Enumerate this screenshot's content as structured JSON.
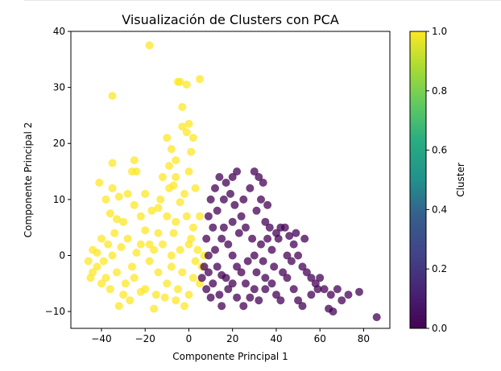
{
  "chart_data": {
    "type": "scatter",
    "title": "Visualización de Clusters con PCA",
    "xlabel": "Componente Principal 1",
    "ylabel": "Componente Principal 2",
    "xlim": [
      -54,
      92
    ],
    "ylim": [
      -13,
      40
    ],
    "xticks": [
      "−40",
      "−20",
      "0",
      "20",
      "40",
      "60",
      "80"
    ],
    "xtick_values": [
      -40,
      -20,
      0,
      20,
      40,
      60,
      80
    ],
    "yticks": [
      "−10",
      "0",
      "10",
      "20",
      "30",
      "40"
    ],
    "ytick_values": [
      -10,
      0,
      10,
      20,
      30,
      40
    ],
    "colorbar": {
      "label": "Cluster",
      "range": [
        0.0,
        1.0
      ],
      "ticks": [
        "0.0",
        "0.2",
        "0.4",
        "0.6",
        "0.8",
        "1.0"
      ],
      "tick_values": [
        0.0,
        0.2,
        0.4,
        0.6,
        0.8,
        1.0
      ],
      "colormap": "viridis"
    },
    "colors": {
      "cluster_0": "#440154",
      "cluster_1": "#fde725"
    },
    "series": [
      {
        "cluster": 1,
        "points": [
          [
            -18,
            37.5
          ],
          [
            -35,
            28.5
          ],
          [
            -5,
            31
          ],
          [
            -4,
            31
          ],
          [
            -1,
            30.5
          ],
          [
            5,
            31.5
          ],
          [
            -3,
            26.5
          ],
          [
            -1,
            22
          ],
          [
            -3,
            23
          ],
          [
            0,
            23.5
          ],
          [
            2,
            21
          ],
          [
            1,
            18.5
          ],
          [
            -35,
            16.5
          ],
          [
            -25,
            17
          ],
          [
            -24,
            15
          ],
          [
            -26,
            15
          ],
          [
            -41,
            13
          ],
          [
            -35,
            12
          ],
          [
            -38,
            10
          ],
          [
            -32,
            10.5
          ],
          [
            -28,
            11
          ],
          [
            -20,
            11
          ],
          [
            -25,
            9
          ],
          [
            -17,
            8
          ],
          [
            -36,
            7.5
          ],
          [
            -33,
            6.5
          ],
          [
            -30,
            6
          ],
          [
            -22,
            7
          ],
          [
            -10,
            21
          ],
          [
            -8,
            19
          ],
          [
            -6,
            17
          ],
          [
            -12,
            14
          ],
          [
            -9,
            12
          ],
          [
            -6,
            14
          ],
          [
            -4,
            9.5
          ],
          [
            0,
            15
          ],
          [
            -2,
            11
          ],
          [
            3,
            12
          ],
          [
            5,
            7
          ],
          [
            2,
            5
          ],
          [
            -14,
            4
          ],
          [
            -18,
            2
          ],
          [
            -28,
            3
          ],
          [
            -34,
            4
          ],
          [
            -40,
            3
          ],
          [
            -44,
            1
          ],
          [
            -46,
            -1
          ],
          [
            -42,
            -2
          ],
          [
            -38,
            -4
          ],
          [
            -33,
            -3
          ],
          [
            -29,
            -5
          ],
          [
            -25,
            -4
          ],
          [
            -20,
            -6
          ],
          [
            -15,
            -7
          ],
          [
            -10,
            -5
          ],
          [
            -5,
            -6
          ],
          [
            0,
            -7
          ],
          [
            -2,
            -9
          ],
          [
            -16,
            -9.5
          ],
          [
            -22,
            -6.5
          ],
          [
            -30,
            -7
          ],
          [
            -36,
            -6
          ],
          [
            -40,
            -5
          ],
          [
            -44,
            -3
          ],
          [
            -12,
            2
          ],
          [
            -8,
            0
          ],
          [
            -4,
            1
          ],
          [
            0,
            2
          ],
          [
            4,
            1
          ],
          [
            6,
            -2
          ],
          [
            -6,
            6
          ],
          [
            -10,
            7
          ],
          [
            1,
            3
          ],
          [
            -31,
            1.5
          ],
          [
            -24,
            0.5
          ],
          [
            -18,
            -1
          ],
          [
            -14,
            -3
          ],
          [
            -8,
            -2
          ],
          [
            -3,
            -3
          ],
          [
            2,
            -4
          ],
          [
            -35,
            0
          ],
          [
            -39,
            -1
          ],
          [
            -26,
            -2
          ],
          [
            -20,
            4.5
          ],
          [
            -14,
            8.5
          ],
          [
            -7,
            4
          ],
          [
            -1,
            7
          ],
          [
            3,
            -1
          ],
          [
            -45,
            -4
          ],
          [
            -42,
            0.5
          ],
          [
            -37,
            2
          ],
          [
            -27,
            -8
          ],
          [
            -32,
            -9
          ],
          [
            -11,
            -7.5
          ],
          [
            -6,
            -8
          ],
          [
            5,
            -5
          ],
          [
            7,
            0
          ],
          [
            -16,
            1
          ],
          [
            -22,
            2
          ],
          [
            -13,
            10
          ],
          [
            -9,
            16
          ],
          [
            -7,
            12.5
          ]
        ]
      },
      {
        "cluster": 0,
        "points": [
          [
            86,
            -11
          ],
          [
            78,
            -6.5
          ],
          [
            73,
            -7
          ],
          [
            70,
            -8
          ],
          [
            66,
            -10
          ],
          [
            64,
            -9.5
          ],
          [
            62,
            -6
          ],
          [
            59,
            -6
          ],
          [
            65,
            -7
          ],
          [
            68,
            -6
          ],
          [
            56,
            -7
          ],
          [
            52,
            -9
          ],
          [
            50,
            -8
          ],
          [
            48,
            -6
          ],
          [
            45,
            -4
          ],
          [
            42,
            -8
          ],
          [
            40,
            -7
          ],
          [
            38,
            -5
          ],
          [
            35,
            -6
          ],
          [
            32,
            -8
          ],
          [
            30,
            -6
          ],
          [
            28,
            -7.5
          ],
          [
            25,
            -9
          ],
          [
            22,
            -7.5
          ],
          [
            18,
            -6
          ],
          [
            14,
            -7
          ],
          [
            10,
            -7.5
          ],
          [
            8,
            -6
          ],
          [
            6,
            -4
          ],
          [
            7,
            -2
          ],
          [
            9,
            0
          ],
          [
            12,
            1
          ],
          [
            15,
            3
          ],
          [
            18,
            2
          ],
          [
            20,
            0
          ],
          [
            22,
            -2
          ],
          [
            24,
            -3
          ],
          [
            27,
            -1
          ],
          [
            30,
            0
          ],
          [
            33,
            2
          ],
          [
            36,
            3
          ],
          [
            38,
            1
          ],
          [
            40,
            4
          ],
          [
            42,
            5
          ],
          [
            44,
            5
          ],
          [
            46,
            3.5
          ],
          [
            48,
            2
          ],
          [
            50,
            0
          ],
          [
            52,
            -2
          ],
          [
            54,
            -3
          ],
          [
            56,
            -4
          ],
          [
            58,
            -5
          ],
          [
            60,
            -4
          ],
          [
            47,
            -1
          ],
          [
            43,
            -3
          ],
          [
            39,
            -2
          ],
          [
            35,
            -4
          ],
          [
            31,
            -3
          ],
          [
            29,
            3
          ],
          [
            26,
            5
          ],
          [
            24,
            7
          ],
          [
            21,
            9
          ],
          [
            19,
            11
          ],
          [
            17,
            13
          ],
          [
            14,
            14
          ],
          [
            12,
            12
          ],
          [
            10,
            10
          ],
          [
            9,
            7
          ],
          [
            11,
            5
          ],
          [
            13,
            8
          ],
          [
            16,
            10
          ],
          [
            20,
            6
          ],
          [
            23,
            4
          ],
          [
            25,
            10
          ],
          [
            28,
            12
          ],
          [
            30,
            15
          ],
          [
            32,
            14
          ],
          [
            34,
            13
          ],
          [
            33,
            10
          ],
          [
            31,
            8
          ],
          [
            35,
            6
          ],
          [
            37,
            5
          ],
          [
            41,
            3
          ],
          [
            45,
            0
          ],
          [
            49,
            4
          ],
          [
            53,
            3
          ],
          [
            16,
            5
          ],
          [
            8,
            3
          ],
          [
            13,
            -2
          ],
          [
            17,
            -4
          ],
          [
            20,
            -5
          ],
          [
            11,
            -5
          ],
          [
            15,
            -9
          ],
          [
            26,
            -5
          ],
          [
            34,
            -1
          ],
          [
            36,
            9
          ],
          [
            22,
            15
          ],
          [
            20,
            14
          ],
          [
            15,
            -3.5
          ],
          [
            9,
            -3
          ]
        ]
      }
    ]
  }
}
